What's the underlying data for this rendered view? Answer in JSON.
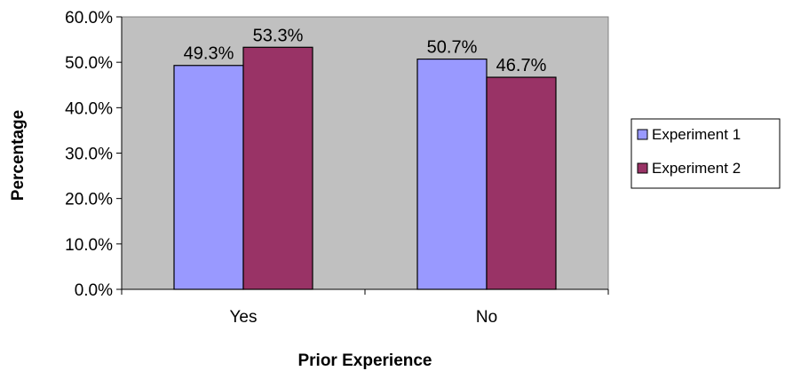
{
  "chart_data": {
    "type": "bar",
    "title": "",
    "xlabel": "Prior Experience",
    "ylabel": "Percentage",
    "categories": [
      "Yes",
      "No"
    ],
    "series": [
      {
        "name": "Experiment 1",
        "values": [
          49.3,
          50.7
        ],
        "labels": [
          "49.3%",
          "50.7%"
        ],
        "color": "#9999ff"
      },
      {
        "name": "Experiment 2",
        "values": [
          53.3,
          46.7
        ],
        "labels": [
          "53.3%",
          "46.7%"
        ],
        "color": "#993366"
      }
    ],
    "ylim": [
      0,
      60
    ],
    "yticks": [
      0,
      10,
      20,
      30,
      40,
      50,
      60
    ],
    "ytick_labels": [
      "0.0%",
      "10.0%",
      "20.0%",
      "30.0%",
      "40.0%",
      "50.0%",
      "60.0%"
    ],
    "grid": false,
    "plot_background": "#c0c0c0",
    "legend_position": "right"
  }
}
